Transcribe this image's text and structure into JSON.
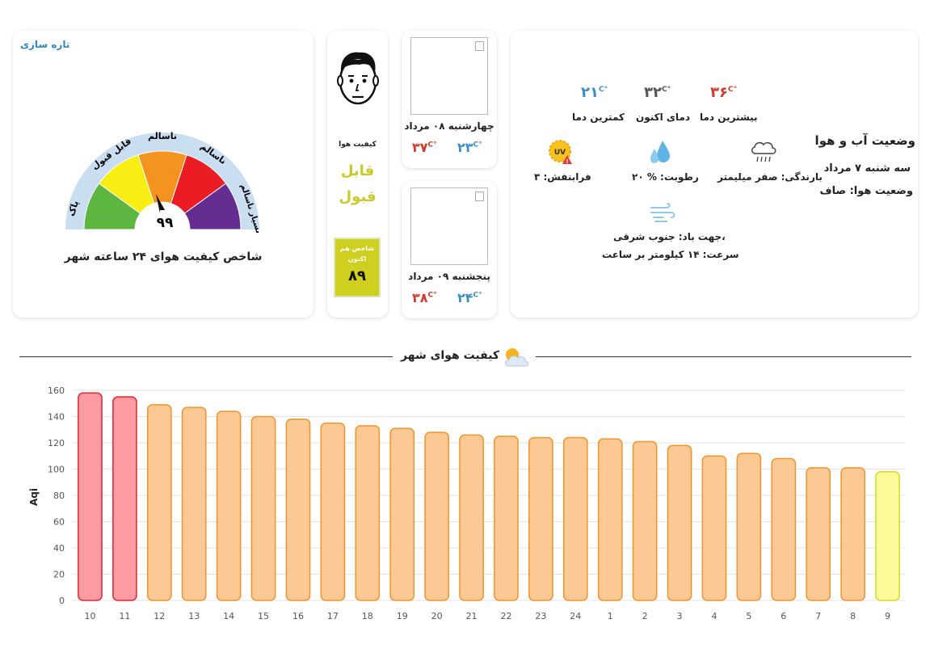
{
  "gauge_card": {
    "refresh_label": "تازه سازی",
    "segment_labels": [
      "پاک",
      "قابل قبول",
      "ناسالم",
      "ناسالم",
      "بسیار ناسالم"
    ],
    "value": "۹۹",
    "title": "شاخص کیفیت هوای ۲۴ ساعته شهر",
    "colors": [
      "#5cb63f",
      "#f9ee14",
      "#f5931f",
      "#eb1c24",
      "#652d91"
    ]
  },
  "face_card": {
    "label": "کیفیت هوا",
    "status": "قابل قبول",
    "now_label": "شاخص هم اکنون",
    "now_value": "۸۹"
  },
  "forecast": [
    {
      "date": "چهارشنبه ۰۸ مرداد",
      "min": "۲۳",
      "max": "۳۷",
      "unit": "C°"
    },
    {
      "date": "پنجشنبه ۰۹ مرداد",
      "min": "۲۴",
      "max": "۳۸",
      "unit": "C°"
    }
  ],
  "weather": {
    "title": "وضعیت آب و هوا",
    "date": "سه شنبه ۷ مرداد",
    "condition": "وضعیت هوا: صاف",
    "unit": "C°",
    "max_temp": "۳۶",
    "max_label": "بیشترین دما",
    "now_temp": "۳۲",
    "now_label": "دمای اکنون",
    "min_temp": "۲۱",
    "min_label": "کمترین دما",
    "precipitation": "بارندگی: صفر میلیمتر",
    "humidity": "رطوبت: % ۲۰",
    "uv": "فرابنفش: ۳",
    "wind_direction": "جهت باد: جنوب شرقی،",
    "wind_speed": "سرعت: ۱۴ کیلومتر بر ساعت",
    "icons": [
      "cloud-rain-icon",
      "humidity-drops-icon",
      "uv-warning-icon",
      "wind-icon",
      "sun-cloud-icon"
    ],
    "colors": {
      "max": "#d33a2c",
      "now": "#555555",
      "min": "#3a8fc4"
    }
  },
  "section": {
    "title": "کیفیت هوای شهر"
  },
  "chart_data": {
    "type": "bar",
    "ylabel": "Aqi",
    "xlabel": "",
    "ylim": [
      0,
      160
    ],
    "yticks": [
      0,
      20,
      40,
      60,
      80,
      100,
      120,
      140,
      160
    ],
    "categories": [
      "10",
      "11",
      "12",
      "13",
      "14",
      "15",
      "16",
      "17",
      "18",
      "19",
      "20",
      "21",
      "22",
      "23",
      "24",
      "1",
      "2",
      "3",
      "4",
      "5",
      "6",
      "7",
      "8",
      "9"
    ],
    "values": [
      158,
      155,
      149,
      147,
      144,
      140,
      138,
      135,
      133,
      131,
      128,
      126,
      125,
      124,
      124,
      123,
      121,
      118,
      110,
      112,
      108,
      101,
      101,
      98
    ],
    "grid": true,
    "colors": {
      "unhealthy_fill": "#fc9ba1",
      "unhealthy_stroke": "#e3262f",
      "sensitive_fill": "#fcc994",
      "sensitive_stroke": "#f0942c",
      "moderate_fill": "#fafa9a",
      "moderate_stroke": "#d8d820"
    }
  }
}
